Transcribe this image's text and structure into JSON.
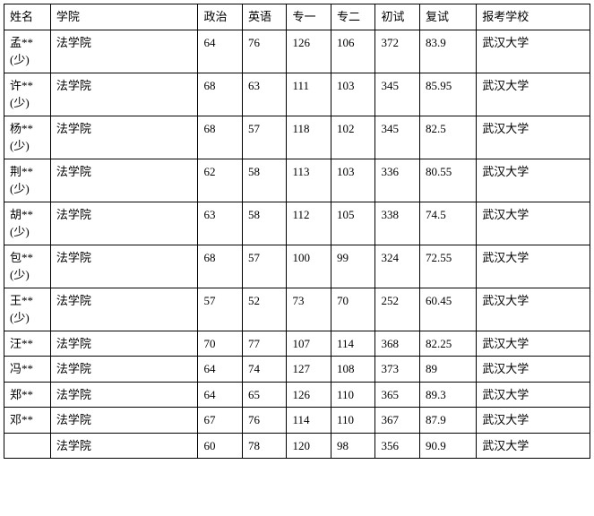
{
  "table": {
    "columns": [
      "姓名",
      "学院",
      "政治",
      "英语",
      "专一",
      "专二",
      "初试",
      "复试",
      "报考学校"
    ],
    "rows": [
      [
        "孟**(少)",
        "法学院",
        "64",
        "76",
        "126",
        "106",
        "372",
        "83.9",
        "武汉大学"
      ],
      [
        "许**(少)",
        "法学院",
        "68",
        "63",
        "111",
        "103",
        "345",
        "85.95",
        "武汉大学"
      ],
      [
        "杨**(少)",
        "法学院",
        "68",
        "57",
        "118",
        "102",
        "345",
        "82.5",
        "武汉大学"
      ],
      [
        "荆**(少)",
        "法学院",
        "62",
        "58",
        "113",
        "103",
        "336",
        "80.55",
        "武汉大学"
      ],
      [
        "胡**(少)",
        "法学院",
        "63",
        "58",
        "112",
        "105",
        "338",
        "74.5",
        "武汉大学"
      ],
      [
        "包**(少)",
        "法学院",
        "68",
        "57",
        "100",
        "99",
        "324",
        "72.55",
        "武汉大学"
      ],
      [
        "王**(少)",
        "法学院",
        "57",
        "52",
        "73",
        "70",
        "252",
        "60.45",
        "武汉大学"
      ],
      [
        "汪**",
        "法学院",
        "70",
        "77",
        "107",
        "114",
        "368",
        "82.25",
        "武汉大学"
      ],
      [
        "冯**",
        "法学院",
        "64",
        "74",
        "127",
        "108",
        "373",
        "89",
        "武汉大学"
      ],
      [
        "郑**",
        "法学院",
        "64",
        "65",
        "126",
        "110",
        "365",
        "89.3",
        "武汉大学"
      ],
      [
        "邓**",
        "法学院",
        "67",
        "76",
        "114",
        "110",
        "367",
        "87.9",
        "武汉大学"
      ],
      [
        "",
        "法学院",
        "60",
        "78",
        "120",
        "98",
        "356",
        "90.9",
        "武汉大学"
      ]
    ]
  },
  "style": {
    "border_color": "#000000",
    "background_color": "#ffffff",
    "font_family": "SimSun",
    "font_size": 13
  }
}
